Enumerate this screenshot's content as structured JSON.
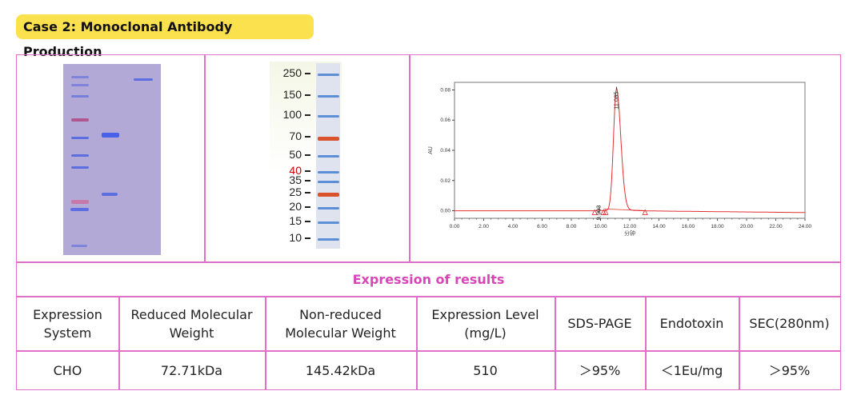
{
  "title": "Case 2: Monoclonal Antibody Production",
  "ladder": {
    "labels": [
      "250",
      "150",
      "100",
      "70",
      "50",
      "40",
      "35",
      "25",
      "20",
      "15",
      "10"
    ],
    "highlight": "40",
    "highlight_color": "#cc0000",
    "orange_bands": [
      "70",
      "25"
    ]
  },
  "chart_data": {
    "type": "line",
    "xlabel": "分钟",
    "ylabel": "AU",
    "xlim": [
      0,
      24
    ],
    "ylim": [
      -0.005,
      0.085
    ],
    "xticks": [
      "0.00",
      "2.00",
      "4.00",
      "6.00",
      "8.00",
      "10.00",
      "12.00",
      "14.00",
      "16.00",
      "18.00",
      "20.00",
      "22.00",
      "24.00"
    ],
    "yticks": [
      "0.00",
      "0.02",
      "0.04",
      "0.06",
      "0.08"
    ],
    "peaks": [
      {
        "rt": 9.903,
        "label": "9.903",
        "height": 0.0005
      },
      {
        "rt": 11.085,
        "label": "11.085",
        "height": 0.08
      }
    ],
    "markers": [
      9.6,
      10.2,
      10.35,
      13.05
    ],
    "color": "#e03030",
    "grid": false
  },
  "results": {
    "heading": "Expression of results",
    "headers": [
      "Expression System",
      "Reduced Molecular Weight",
      "Non-reduced Molecular Weight",
      "Expression Level (mg/L)",
      "SDS-PAGE",
      "Endotoxin",
      "SEC(280nm)"
    ],
    "row": [
      "CHO",
      "72.71kDa",
      "145.42kDa",
      "510",
      "＞95%",
      "＜1Eu/mg",
      "＞95%"
    ]
  }
}
